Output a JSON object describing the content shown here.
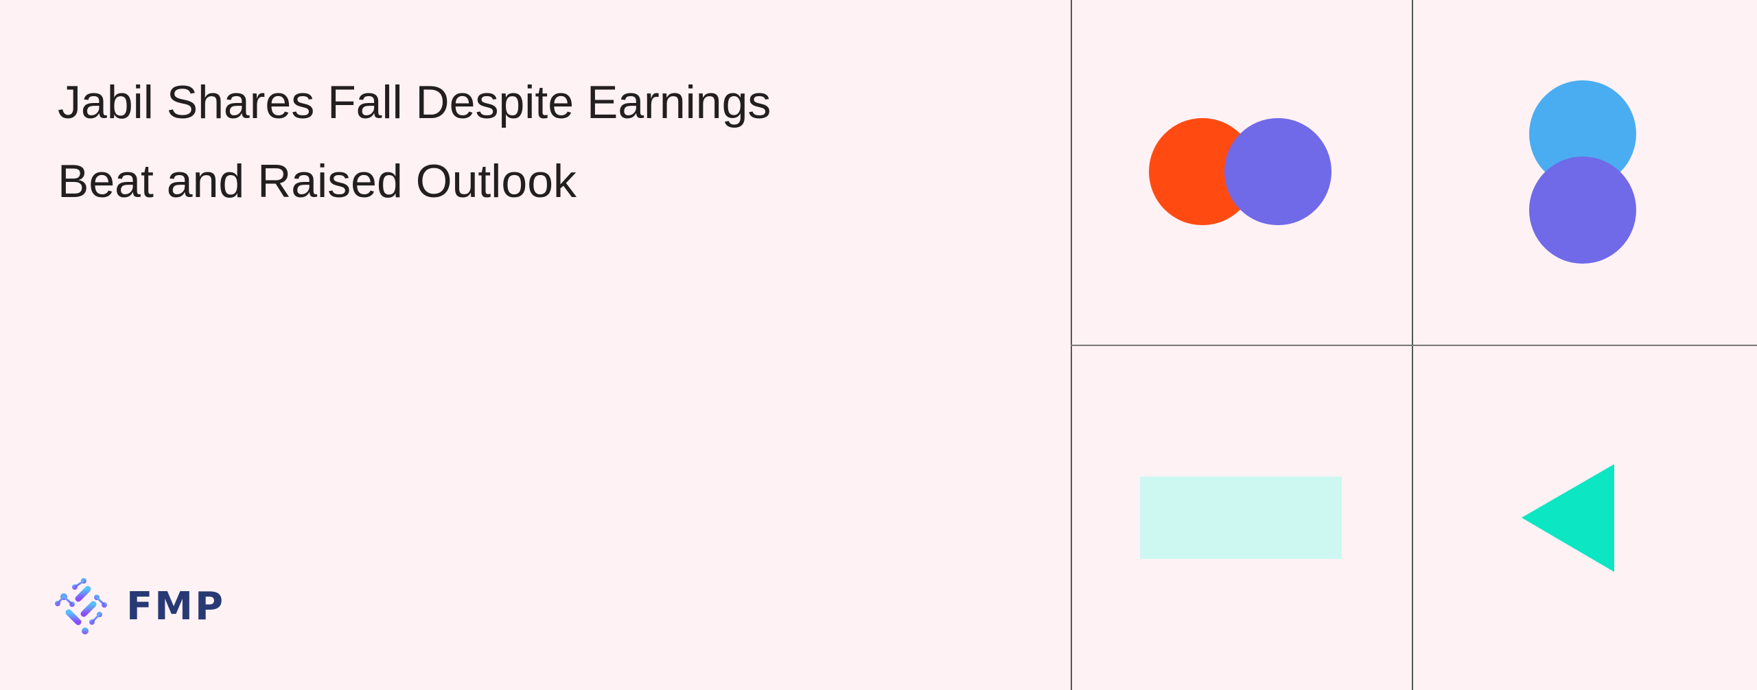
{
  "article": {
    "title_line1": "Jabil Shares Fall Despite Earnings",
    "title_line2": "Beat and Raised Outlook"
  },
  "brand": {
    "logo_text": "FMP",
    "color": "#283a75"
  },
  "colors": {
    "background": "#fff2f5",
    "orange": "#ff4b12",
    "purple": "#7069e8",
    "blue": "#4aadf1",
    "mint": "#ccf8f1",
    "teal": "#0ce6c3",
    "grid_line": "#555555"
  }
}
